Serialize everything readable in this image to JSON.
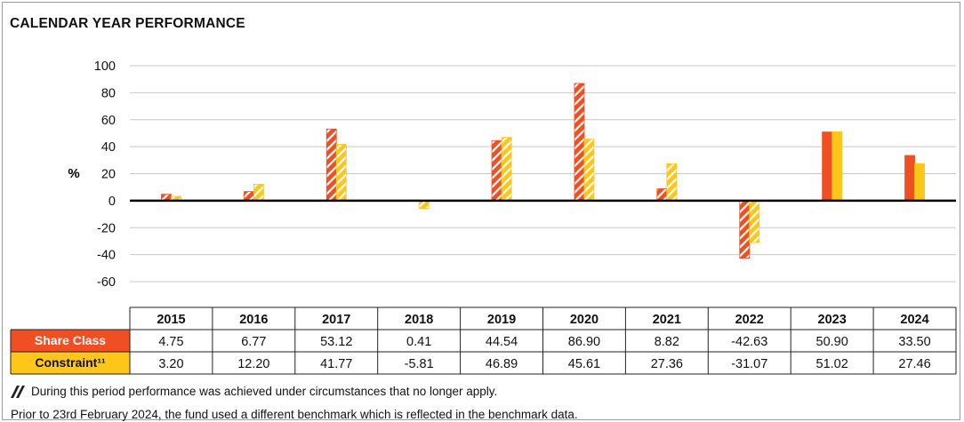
{
  "title": "CALENDAR YEAR PERFORMANCE",
  "colors": {
    "share_class": "#f04e23",
    "constraint": "#ffc61a",
    "hatch": "#ffffff"
  },
  "chart_data": {
    "type": "bar",
    "title": "CALENDAR YEAR PERFORMANCE",
    "ylabel": "%",
    "ylim": [
      -60,
      100
    ],
    "yticks": [
      100,
      80,
      60,
      40,
      20,
      0,
      -20,
      -40,
      -60
    ],
    "grid": true,
    "categories": [
      "2015",
      "2016",
      "2017",
      "2018",
      "2019",
      "2020",
      "2021",
      "2022",
      "2023",
      "2024"
    ],
    "hatched_categories": [
      "2015",
      "2016",
      "2017",
      "2018",
      "2019",
      "2020",
      "2021",
      "2022"
    ],
    "series": [
      {
        "name": "Share Class",
        "color": "#f04e23",
        "values": [
          4.75,
          6.77,
          53.12,
          0.41,
          44.54,
          86.9,
          8.82,
          -42.63,
          50.9,
          33.5
        ]
      },
      {
        "name": "Constraint¹¹",
        "color": "#ffc61a",
        "values": [
          3.2,
          12.2,
          41.77,
          -5.81,
          46.89,
          45.61,
          27.36,
          -31.07,
          51.02,
          27.46
        ]
      }
    ]
  },
  "table": {
    "years": [
      "2015",
      "2016",
      "2017",
      "2018",
      "2019",
      "2020",
      "2021",
      "2022",
      "2023",
      "2024"
    ],
    "rows": [
      {
        "label": "Share Class",
        "cells": [
          "4.75",
          "6.77",
          "53.12",
          "0.41",
          "44.54",
          "86.90",
          "8.82",
          "-42.63",
          "50.90",
          "33.50"
        ]
      },
      {
        "label": "Constraint¹¹",
        "cells": [
          "3.20",
          "12.20",
          "41.77",
          "-5.81",
          "46.89",
          "45.61",
          "27.36",
          "-31.07",
          "51.02",
          "27.46"
        ]
      }
    ]
  },
  "notes": {
    "hatch_note": "During this period performance was achieved under circumstances that no longer apply.",
    "benchmark_note": "Prior to 23rd February 2024, the fund used a different benchmark which is reflected in the benchmark data."
  }
}
